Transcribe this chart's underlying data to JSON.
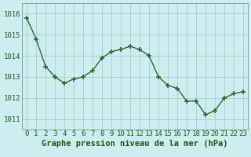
{
  "x": [
    0,
    1,
    2,
    3,
    4,
    5,
    6,
    7,
    8,
    9,
    10,
    11,
    12,
    13,
    14,
    15,
    16,
    17,
    18,
    19,
    20,
    21,
    22,
    23
  ],
  "y": [
    1015.8,
    1014.8,
    1013.5,
    1013.0,
    1012.7,
    1012.9,
    1013.0,
    1013.3,
    1013.9,
    1014.2,
    1014.3,
    1014.45,
    1014.3,
    1014.0,
    1013.0,
    1012.6,
    1012.45,
    1011.85,
    1011.85,
    1011.2,
    1011.4,
    1012.0,
    1012.2,
    1012.3
  ],
  "line_color": "#2d6a2d",
  "marker": "+",
  "marker_size": 4,
  "marker_color": "#2d6a2d",
  "bg_color": "#cceef0",
  "grid_major_color": "#b0c8c8",
  "grid_minor_color": "#d8ecea",
  "xlabel": "Graphe pression niveau de la mer (hPa)",
  "xlabel_color": "#1a5c1a",
  "xlabel_fontsize": 7.5,
  "ylabel_ticks": [
    1011,
    1012,
    1013,
    1014,
    1015,
    1016
  ],
  "ylim": [
    1010.5,
    1016.5
  ],
  "xlim": [
    -0.5,
    23.5
  ],
  "tick_label_color": "#1a5c1a",
  "tick_fontsize": 6.5,
  "spine_color": "#7a9a9a"
}
